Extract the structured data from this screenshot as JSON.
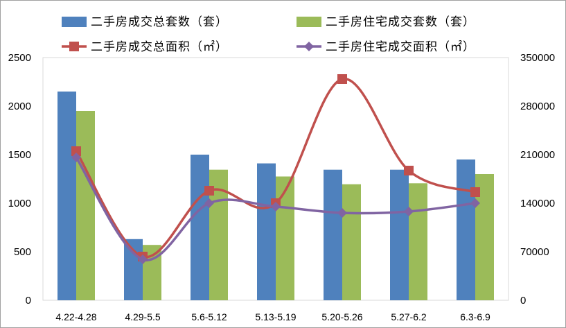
{
  "chart_data": {
    "type": "bar",
    "categories": [
      "4.22-4.28",
      "4.29-5.5",
      "5.6-5.12",
      "5.13-5.19",
      "5.20-5.26",
      "5.27-6.2",
      "6.3-6.9"
    ],
    "series": [
      {
        "name": "二手房成交总套数（套）",
        "kind": "bar",
        "axis": "left",
        "color": "#4f81bd",
        "values": [
          2150,
          630,
          1500,
          1410,
          1345,
          1345,
          1450
        ]
      },
      {
        "name": "二手房住宅成交套数（套）",
        "kind": "bar",
        "axis": "left",
        "color": "#9bbb59",
        "values": [
          1950,
          570,
          1345,
          1275,
          1195,
          1205,
          1300
        ]
      },
      {
        "name": "二手房成交总面积（㎡）",
        "kind": "line",
        "axis": "right",
        "color": "#c0504d",
        "marker": "square",
        "values": [
          215000,
          63000,
          158000,
          140000,
          319000,
          187000,
          156000
        ]
      },
      {
        "name": "二手房住宅成交面积（㎡）",
        "kind": "line",
        "axis": "right",
        "color": "#8064a2",
        "marker": "diamond",
        "values": [
          206000,
          59000,
          140000,
          135000,
          126000,
          128000,
          140000
        ]
      }
    ],
    "y_left": {
      "min": 0,
      "max": 2500,
      "ticks": [
        "0",
        "500",
        "1000",
        "1500",
        "2000",
        "2500"
      ]
    },
    "y_right": {
      "min": 0,
      "max": 350000,
      "ticks": [
        "0",
        "70000",
        "140000",
        "210000",
        "280000",
        "350000"
      ]
    },
    "grid": false,
    "legend_position": "top"
  }
}
